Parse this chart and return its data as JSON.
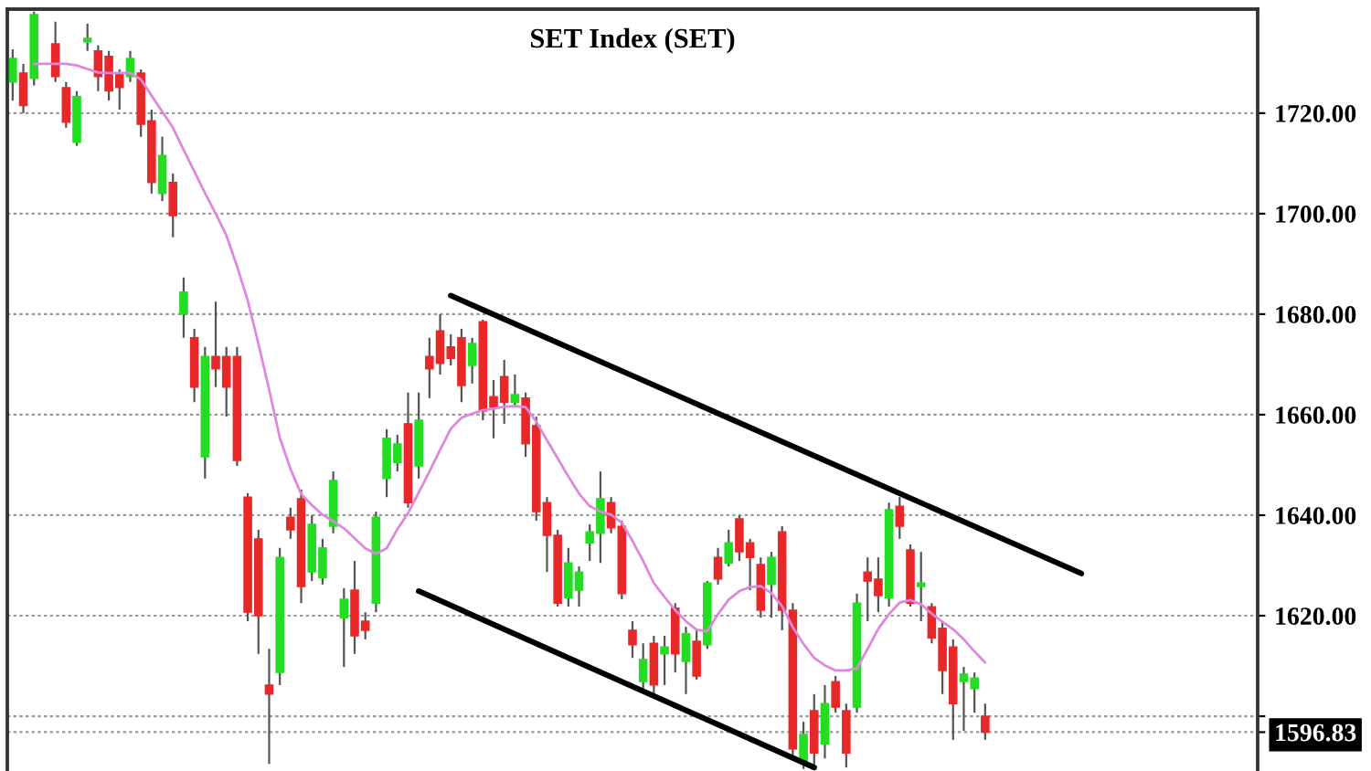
{
  "chart_data": [
    {
      "type": "candlestick",
      "categories": [
        null,
        null,
        null,
        null,
        null,
        null,
        null,
        null,
        null,
        null,
        null,
        null,
        null,
        null,
        null,
        null,
        null,
        null,
        null,
        null,
        null,
        null,
        null,
        null,
        null,
        null,
        null,
        null,
        null,
        null,
        null,
        null,
        null,
        null,
        null,
        null,
        null,
        null,
        null,
        null,
        null,
        null,
        null,
        null,
        null,
        null,
        null,
        null,
        null,
        null,
        null,
        null,
        null,
        null,
        null,
        null,
        null,
        null,
        null,
        null,
        null,
        null,
        null,
        null,
        null,
        null,
        null,
        null,
        null,
        null,
        null,
        null,
        null,
        null,
        null,
        null,
        null,
        null,
        null,
        null,
        null,
        null,
        null,
        null,
        null,
        null,
        null,
        null,
        null,
        null,
        null,
        null,
        null,
        null,
        null,
        null,
        null,
        null,
        null,
        null,
        null,
        null,
        null,
        null,
        null,
        null,
        null,
        null,
        null,
        null,
        null,
        null,
        null,
        null,
        null,
        null,
        null
      ],
      "ohlc": [
        [
          1726.2,
          1732.7,
          1722.5,
          1730.9
        ],
        [
          1728.0,
          1729.8,
          1720.0,
          1721.5
        ],
        [
          1726.9,
          1740.2,
          1725.5,
          1739.6
        ],
        null,
        [
          1733.8,
          1738.2,
          1726.2,
          1727.3
        ],
        [
          1725.1,
          1726.2,
          1717.1,
          1718.2
        ],
        [
          1714.2,
          1724.4,
          1713.5,
          1723.3
        ],
        [
          1734.2,
          1737.8,
          1732.4,
          1734.9
        ],
        [
          1732.4,
          1733.5,
          1724.4,
          1727.3
        ],
        [
          1731.3,
          1732.4,
          1722.5,
          1724.4
        ],
        [
          1728.0,
          1728.7,
          1720.7,
          1725.1
        ],
        [
          1727.3,
          1732.4,
          1726.2,
          1730.9
        ],
        [
          1728.0,
          1728.7,
          1715.3,
          1717.8
        ],
        [
          1718.5,
          1720.7,
          1704.0,
          1706.2
        ],
        [
          1704.0,
          1715.3,
          1702.5,
          1711.6
        ],
        [
          1706.2,
          1708.0,
          1695.3,
          1699.6
        ],
        [
          1680.0,
          1687.3,
          1675.3,
          1684.4
        ],
        [
          1675.3,
          1677.1,
          1662.5,
          1665.5
        ],
        [
          1651.6,
          1673.5,
          1647.3,
          1671.6
        ],
        [
          1671.6,
          1682.5,
          1665.5,
          1669.1
        ],
        [
          1671.6,
          1673.5,
          1659.6,
          1665.5
        ],
        [
          1671.6,
          1673.5,
          1649.8,
          1650.9
        ],
        [
          1643.6,
          1644.4,
          1618.9,
          1620.7
        ],
        [
          1635.3,
          1637.1,
          1612.4,
          1620.0
        ],
        [
          1606.2,
          1613.4,
          1590.5,
          1604.4
        ],
        [
          1608.7,
          1633.5,
          1606.2,
          1631.6
        ],
        [
          1639.6,
          1641.5,
          1635.3,
          1637.1
        ],
        [
          1643.3,
          1645.1,
          1622.5,
          1625.8
        ],
        [
          1628.7,
          1640.0,
          1626.9,
          1638.2
        ],
        [
          1627.6,
          1635.3,
          1626.2,
          1633.5
        ],
        [
          1637.8,
          1648.7,
          1636.4,
          1646.9
        ],
        [
          1619.6,
          1625.5,
          1609.8,
          1623.3
        ],
        [
          1625.1,
          1630.9,
          1612.4,
          1616.0
        ],
        [
          1618.9,
          1620.7,
          1615.3,
          1617.1
        ],
        [
          1622.5,
          1640.7,
          1620.7,
          1639.6
        ],
        [
          1647.3,
          1657.1,
          1643.6,
          1655.3
        ],
        [
          1650.5,
          1656.0,
          1648.7,
          1654.2
        ],
        [
          1658.2,
          1664.4,
          1641.5,
          1642.5
        ],
        [
          1649.8,
          1664.4,
          1647.3,
          1658.9
        ],
        [
          1671.6,
          1675.3,
          1663.3,
          1669.1
        ],
        [
          1676.7,
          1680.0,
          1668.0,
          1670.2
        ],
        [
          1673.5,
          1676.0,
          1669.8,
          1671.2
        ],
        [
          1675.3,
          1677.1,
          1662.5,
          1665.8
        ],
        [
          1669.8,
          1675.3,
          1666.2,
          1674.2
        ],
        [
          1678.5,
          1678.9,
          1658.9,
          1660.7
        ],
        [
          1663.6,
          1666.9,
          1655.3,
          1661.5
        ],
        [
          1667.6,
          1670.9,
          1658.2,
          1662.5
        ],
        [
          1662.5,
          1668.0,
          1661.8,
          1664.0
        ],
        [
          1663.3,
          1664.4,
          1651.6,
          1654.2
        ],
        [
          1657.8,
          1659.6,
          1638.9,
          1640.7
        ],
        [
          1642.5,
          1643.6,
          1628.7,
          1636.0
        ],
        [
          1636.0,
          1637.1,
          1621.8,
          1622.5
        ],
        [
          1623.6,
          1633.5,
          1621.8,
          1630.5
        ],
        [
          1625.1,
          1629.8,
          1621.8,
          1628.7
        ],
        [
          1634.5,
          1638.2,
          1630.9,
          1636.7
        ],
        [
          1636.4,
          1648.7,
          1630.5,
          1643.3
        ],
        [
          1642.5,
          1643.6,
          1636.4,
          1637.5
        ],
        [
          1637.8,
          1638.9,
          1623.3,
          1624.4
        ],
        [
          1617.1,
          1618.9,
          1611.6,
          1614.2
        ],
        [
          1606.9,
          1614.5,
          1605.1,
          1611.3
        ],
        [
          1614.5,
          1616.0,
          1604.4,
          1606.2
        ],
        [
          1612.4,
          1616.0,
          1606.2,
          1613.8
        ],
        [
          1621.5,
          1622.5,
          1608.7,
          1612.4
        ],
        [
          1610.9,
          1617.8,
          1604.4,
          1616.4
        ],
        [
          1614.9,
          1617.1,
          1607.3,
          1608.0
        ],
        [
          1614.2,
          1626.9,
          1613.4,
          1626.5
        ],
        [
          1631.6,
          1633.5,
          1626.2,
          1627.3
        ],
        [
          1630.5,
          1637.1,
          1629.8,
          1634.5
        ],
        [
          1639.3,
          1640.0,
          1630.9,
          1632.7
        ],
        [
          1634.5,
          1635.3,
          1625.1,
          1631.6
        ],
        [
          1630.2,
          1631.6,
          1619.6,
          1621.1
        ],
        [
          1626.2,
          1632.7,
          1619.6,
          1631.6
        ],
        [
          1636.7,
          1637.8,
          1617.1,
          1621.1
        ],
        [
          1621.1,
          1622.5,
          1591.6,
          1593.5
        ],
        [
          1590.9,
          1598.9,
          1589.5,
          1596.4
        ],
        [
          1601.1,
          1604.4,
          1589.5,
          1592.7
        ],
        [
          1594.5,
          1606.2,
          1591.6,
          1602.5
        ],
        [
          1606.9,
          1608.0,
          1600.7,
          1601.8
        ],
        [
          1601.1,
          1602.5,
          1589.8,
          1592.7
        ],
        [
          1601.8,
          1624.4,
          1600.7,
          1622.5
        ],
        [
          1628.7,
          1631.6,
          1618.9,
          1626.9
        ],
        [
          1627.3,
          1631.6,
          1620.7,
          1624.0
        ],
        [
          1623.6,
          1642.5,
          1621.8,
          1641.1
        ],
        [
          1641.8,
          1643.6,
          1635.3,
          1637.8
        ],
        [
          1633.1,
          1634.2,
          1621.8,
          1622.5
        ],
        [
          1625.8,
          1632.7,
          1618.9,
          1626.5
        ],
        [
          1621.8,
          1622.5,
          1614.5,
          1615.6
        ],
        [
          1617.5,
          1618.9,
          1604.4,
          1609.1
        ],
        [
          1613.8,
          1615.3,
          1595.3,
          1602.5
        ],
        [
          1606.9,
          1609.8,
          1597.1,
          1608.4
        ],
        [
          1605.5,
          1608.7,
          1600.7,
          1607.6
        ],
        [
          1600.0,
          1602.5,
          1595.3,
          1596.83
        ],
        null,
        null,
        null,
        null,
        null,
        null,
        null,
        null,
        null,
        null,
        null,
        null,
        null,
        null,
        null,
        null,
        null,
        null,
        null,
        null,
        null,
        null,
        null,
        null,
        null
      ],
      "ylim": [
        1589.1,
        1740.7
      ],
      "tick_labels": false,
      "grid": "y"
    },
    {
      "type": "line",
      "title": "SET Index (SET)",
      "categories": [
        null,
        null,
        null,
        null,
        null,
        null,
        null,
        null,
        null,
        null,
        null,
        null,
        null,
        null,
        null,
        null,
        null,
        null,
        null,
        null,
        null,
        null,
        null,
        null,
        null,
        null,
        null,
        null,
        null,
        null,
        null,
        null,
        null,
        null,
        null,
        null,
        null,
        null,
        null,
        null,
        null,
        null,
        null,
        null,
        null,
        null,
        null,
        null,
        null,
        null,
        null,
        null,
        null,
        null,
        null,
        null,
        null,
        null,
        null,
        null,
        null,
        null,
        null,
        null,
        null,
        null,
        null,
        null,
        null,
        null,
        null,
        null,
        null,
        null,
        null,
        null,
        null,
        null,
        null,
        null,
        null,
        null,
        null,
        null,
        null,
        null,
        null,
        null,
        null,
        null,
        null,
        null,
        null,
        null,
        null,
        null,
        null,
        null,
        null,
        null,
        null,
        null,
        null,
        null,
        null,
        null,
        null,
        null,
        null,
        null,
        null,
        null,
        null,
        null,
        null,
        null,
        null
      ],
      "series": [
        {
          "color": "#dd88dd",
          "values": [
            null,
            null,
            1729.8,
            1729.8,
            1729.8,
            1729.8,
            1729.5,
            1728.8,
            1728.1,
            1728.0,
            1728.0,
            1728.0,
            1726.7,
            1723.5,
            1720.3,
            1717.1,
            1712.7,
            1708.4,
            1704.1,
            1700.0,
            1695.7,
            1689.5,
            1682.7,
            1674.1,
            1665.0,
            1655.4,
            1649.2,
            1644.2,
            1642.0,
            1640.1,
            1638.8,
            1637.4,
            1635.4,
            1633.4,
            1632.3,
            1633.4,
            1637.2,
            1640.4,
            1644.5,
            1648.7,
            1653.0,
            1657.2,
            1659.4,
            1660.2,
            1660.9,
            1661.2,
            1661.6,
            1661.7,
            1661.5,
            1658.6,
            1654.9,
            1651.3,
            1647.7,
            1644.3,
            1641.8,
            1640.7,
            1640.1,
            1638.5,
            1634.9,
            1630.9,
            1626.5,
            1623.7,
            1621.1,
            1618.9,
            1617.2,
            1616.9,
            1620.3,
            1623.2,
            1624.9,
            1625.7,
            1625.9,
            1624.5,
            1621.9,
            1617.7,
            1614.4,
            1611.6,
            1610.1,
            1609.1,
            1609.1,
            1609.5,
            1613.4,
            1617.4,
            1620.3,
            1622.6,
            1623.1,
            1622.3,
            1620.4,
            1618.8,
            1617.3,
            1615.3,
            1612.9,
            1610.7,
            null,
            null,
            null,
            null,
            null,
            null,
            null,
            null,
            null,
            null,
            null,
            null,
            null,
            null,
            null,
            null,
            null,
            null,
            null,
            null,
            null,
            null,
            null,
            null,
            null
          ]
        },
        {
          "color": "#000000",
          "values": [
            null,
            null,
            null,
            null,
            null,
            null,
            null,
            null,
            null,
            null,
            null,
            null,
            null,
            null,
            null,
            null,
            null,
            null,
            null,
            null,
            null,
            null,
            null,
            null,
            null,
            null,
            null,
            null,
            null,
            null,
            null,
            null,
            null,
            null,
            null,
            null,
            null,
            null,
            null,
            null,
            null,
            1683.7,
            null,
            null,
            null,
            null,
            null,
            null,
            null,
            null,
            null,
            null,
            null,
            null,
            null,
            null,
            null,
            null,
            null,
            null,
            null,
            null,
            null,
            null,
            null,
            null,
            null,
            null,
            null,
            null,
            null,
            null,
            null,
            null,
            null,
            null,
            null,
            null,
            null,
            null,
            null,
            null,
            null,
            null,
            null,
            null,
            null,
            null,
            null,
            null,
            null,
            null,
            null,
            null,
            null,
            null,
            null,
            null,
            null,
            null,
            1628.4,
            null,
            null,
            null,
            null,
            null,
            null,
            null,
            null,
            null,
            null,
            null,
            null,
            null,
            null,
            null,
            null
          ]
        },
        {
          "color": "#000000",
          "values": [
            null,
            null,
            null,
            null,
            null,
            null,
            null,
            null,
            null,
            null,
            null,
            null,
            null,
            null,
            null,
            null,
            null,
            null,
            null,
            null,
            null,
            null,
            null,
            null,
            null,
            null,
            null,
            null,
            null,
            null,
            null,
            null,
            null,
            null,
            null,
            null,
            null,
            null,
            1624.9,
            null,
            null,
            null,
            null,
            null,
            null,
            null,
            null,
            null,
            null,
            null,
            null,
            null,
            null,
            null,
            null,
            null,
            null,
            null,
            null,
            null,
            null,
            null,
            null,
            null,
            null,
            null,
            null,
            null,
            null,
            null,
            null,
            null,
            null,
            null,
            null,
            1589.8,
            null,
            null,
            null,
            null,
            null,
            null,
            null,
            null,
            null,
            null,
            null,
            null,
            null,
            null,
            null,
            null,
            null,
            null,
            null,
            null,
            null,
            null,
            null,
            null,
            null,
            null,
            null,
            null,
            null,
            null,
            null,
            null,
            null,
            null,
            null,
            null,
            null,
            null,
            null,
            null,
            null
          ]
        }
      ],
      "ylim": [
        1589.1,
        1740.7
      ],
      "yticks": [
        {
          "value": 1596.83,
          "label": "1596.83"
        },
        {
          "value": 1600,
          "label": null
        },
        {
          "value": 1620,
          "label": "1620.00"
        },
        {
          "value": 1640,
          "label": "1640.00"
        },
        {
          "value": 1660,
          "label": "1660.00"
        },
        {
          "value": 1680,
          "label": "1680.00"
        },
        {
          "value": 1700,
          "label": "1700.00"
        },
        {
          "value": 1720,
          "label": "1720.00"
        }
      ],
      "tick_labels": "y"
    }
  ]
}
